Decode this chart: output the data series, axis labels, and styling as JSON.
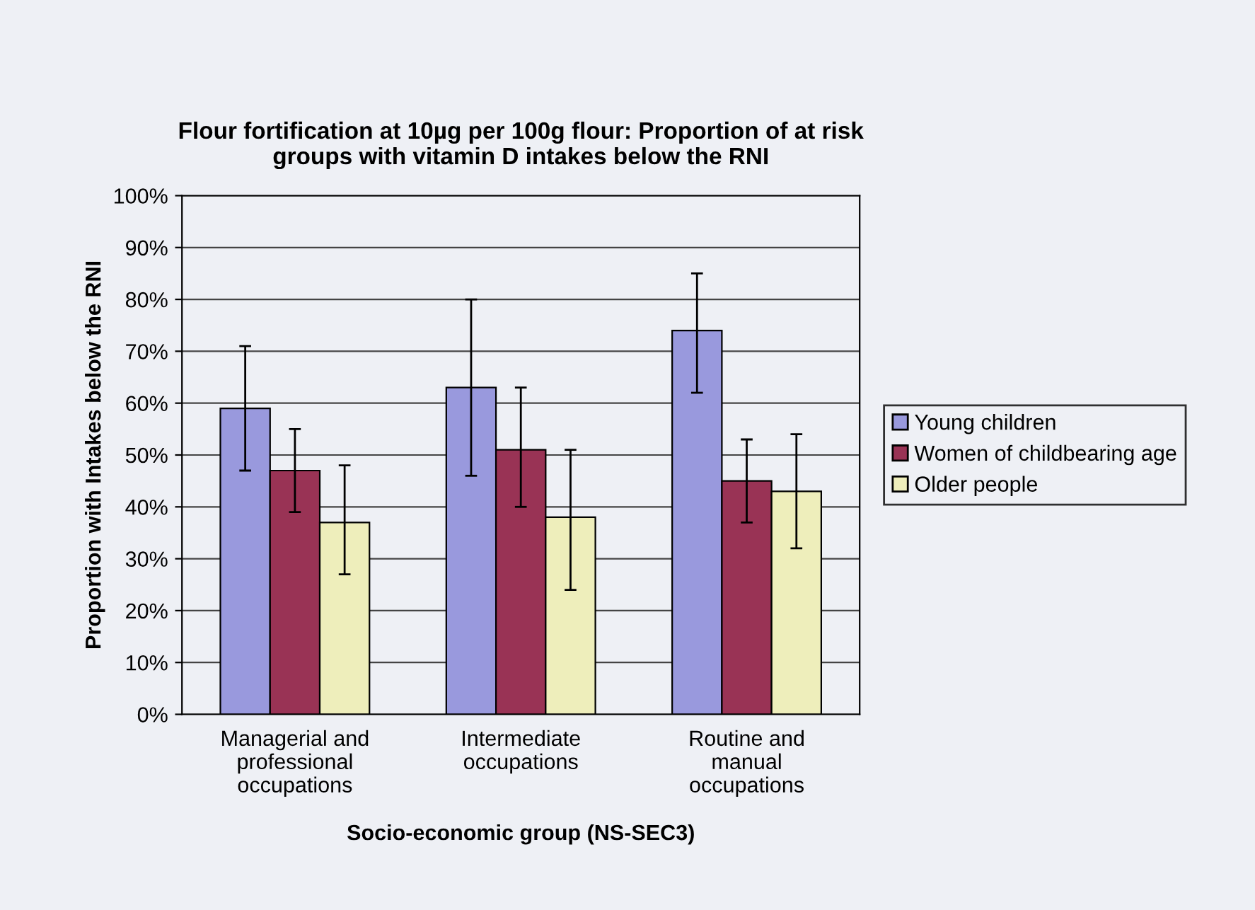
{
  "chart_data": {
    "type": "bar",
    "title": "Flour fortification at 10µg per 100g flour: Proportion of at risk\ngroups with vitamin D intakes below the RNI",
    "xlabel": "Socio-economic group (NS-SEC3)",
    "ylabel": "Proportion with Intakes below the RNI",
    "categories": [
      "Managerial and\nprofessional\noccupations",
      "Intermediate\noccupations",
      "Routine and\nmanual\noccupations"
    ],
    "series": [
      {
        "name": "Young children",
        "color": "#9999dd",
        "values": [
          59,
          63,
          74
        ],
        "errors": [
          [
            47,
            71
          ],
          [
            46,
            80
          ],
          [
            62,
            85
          ]
        ]
      },
      {
        "name": "Women of childbearing age",
        "color": "#993355",
        "values": [
          47,
          51,
          45
        ],
        "errors": [
          [
            39,
            55
          ],
          [
            40,
            63
          ],
          [
            37,
            53
          ]
        ]
      },
      {
        "name": "Older people",
        "color": "#eeeebb",
        "values": [
          37,
          38,
          43
        ],
        "errors": [
          [
            27,
            48
          ],
          [
            24,
            51
          ],
          [
            32,
            54
          ]
        ]
      }
    ],
    "ylim": [
      0,
      100
    ],
    "yticks": [
      {
        "value": 0,
        "label": "0%"
      },
      {
        "value": 10,
        "label": "10%"
      },
      {
        "value": 20,
        "label": "20%"
      },
      {
        "value": 30,
        "label": "30%"
      },
      {
        "value": 40,
        "label": "40%"
      },
      {
        "value": 50,
        "label": "50%"
      },
      {
        "value": 60,
        "label": "60%"
      },
      {
        "value": 70,
        "label": "70%"
      },
      {
        "value": 80,
        "label": "80%"
      },
      {
        "value": 90,
        "label": "90%"
      },
      {
        "value": 100,
        "label": "100%"
      }
    ],
    "grid": "y",
    "legend": "right"
  }
}
